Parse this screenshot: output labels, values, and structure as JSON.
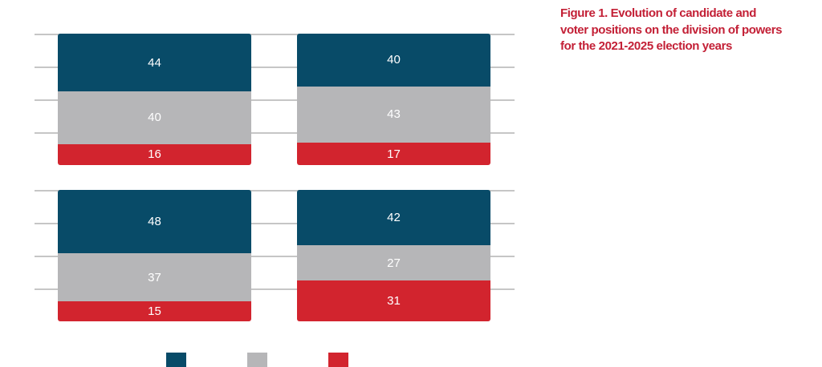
{
  "figure": {
    "title_lines": [
      "Figure 1. Evolution of candidate and",
      "voter positions on the division of powers",
      "for the 2021-2025 election years"
    ],
    "title_color": "#C32036"
  },
  "chart_data": {
    "type": "bar",
    "subtype": "100-percent-stacked-vertical",
    "title": "Figure 1. Evolution of candidate and voter positions on the division of powers for the 2021-2025 election years",
    "ylim": [
      0,
      100
    ],
    "gridline_values": [
      100,
      75,
      50,
      25
    ],
    "grid": true,
    "layout": "2x2-panels",
    "legend_position": "bottom",
    "colors": {
      "navy": "#084B68",
      "gray": "#B6B6B8",
      "red": "#D2242E",
      "gridline": "#C6C6C6",
      "value_label": "#FFFFFF"
    },
    "panels": [
      {
        "position": "top-left",
        "segments": [
          {
            "color": "#084B68",
            "value": 44
          },
          {
            "color": "#B6B6B8",
            "value": 40
          },
          {
            "color": "#D2242E",
            "value": 16
          }
        ]
      },
      {
        "position": "top-right",
        "segments": [
          {
            "color": "#084B68",
            "value": 40
          },
          {
            "color": "#B6B6B8",
            "value": 43
          },
          {
            "color": "#D2242E",
            "value": 17
          }
        ]
      },
      {
        "position": "bottom-left",
        "segments": [
          {
            "color": "#084B68",
            "value": 48
          },
          {
            "color": "#B6B6B8",
            "value": 37
          },
          {
            "color": "#D2242E",
            "value": 15
          }
        ]
      },
      {
        "position": "bottom-right",
        "segments": [
          {
            "color": "#084B68",
            "value": 42
          },
          {
            "color": "#B6B6B8",
            "value": 27
          },
          {
            "color": "#D2242E",
            "value": 31
          }
        ]
      }
    ],
    "legend": {
      "swatches": [
        {
          "color": "#084B68"
        },
        {
          "color": "#B6B6B8"
        },
        {
          "color": "#D2242E"
        }
      ]
    }
  }
}
